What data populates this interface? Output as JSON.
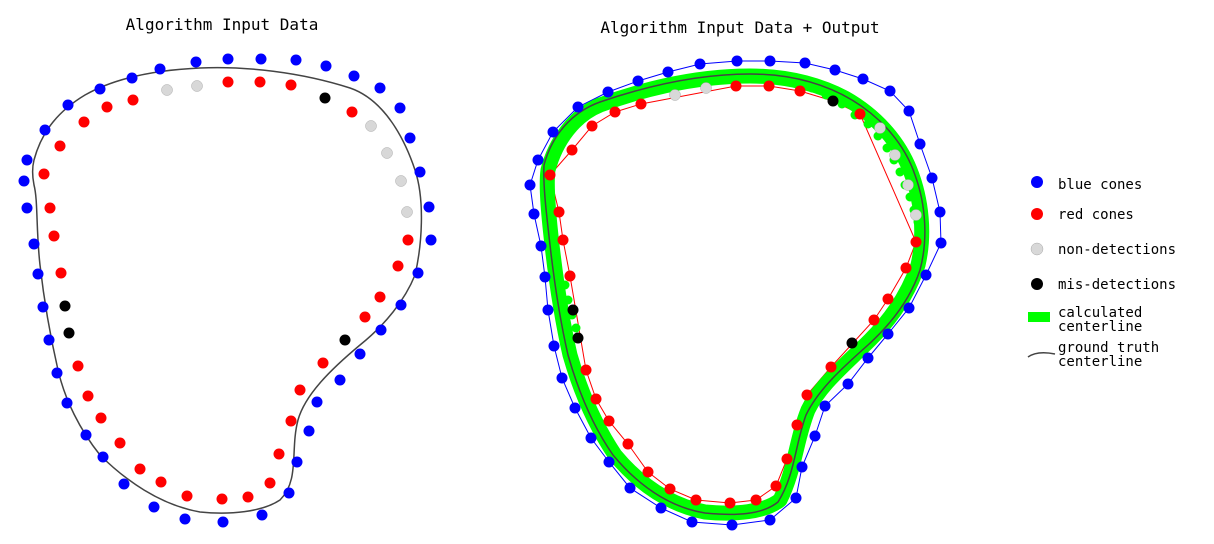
{
  "titles": {
    "left": "Algorithm Input Data",
    "right": "Algorithm Input Data + Output"
  },
  "legend": {
    "blue": "blue cones",
    "red": "red cones",
    "non_detections": "non-detections",
    "mis_detections": "mis-detections",
    "centerline_l1": "calculated",
    "centerline_l2": "centerline",
    "ground_truth_l1": "ground truth",
    "ground_truth_l2": "centerline"
  },
  "colors": {
    "blue": "#0000ff",
    "red": "#ff0000",
    "non_detection": "#d8d8d8",
    "mis_detection": "#000000",
    "calculated": "#00ff00",
    "ground_truth": "#444444"
  }
}
